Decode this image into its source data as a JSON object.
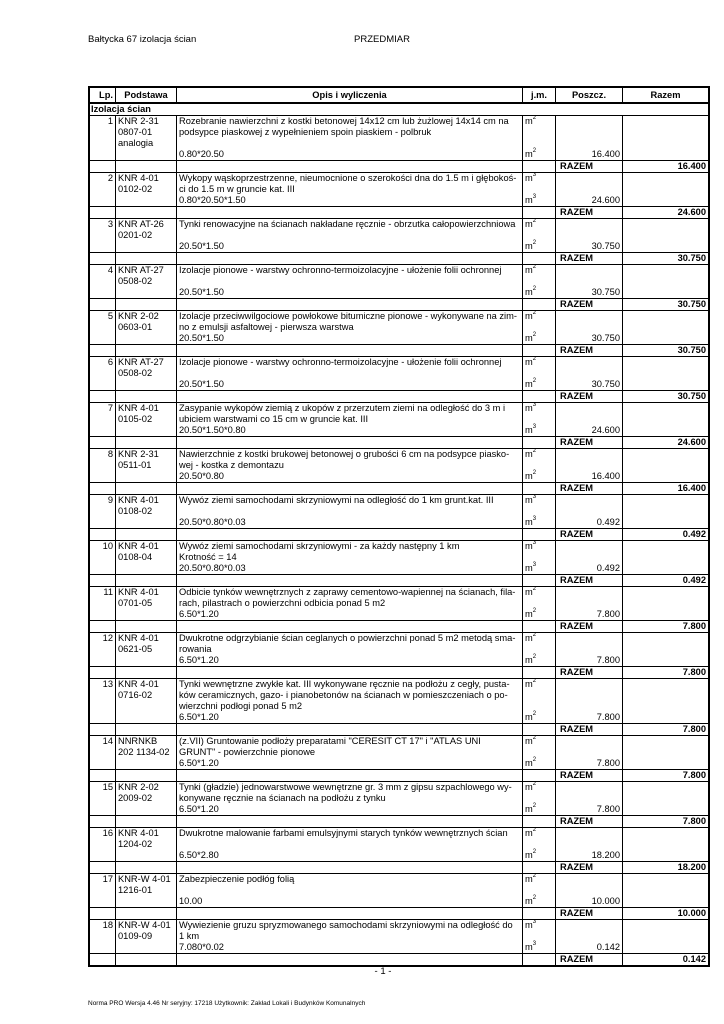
{
  "header": {
    "left": "Bałtycka 67 izolacja ścian",
    "center": "PRZEDMIAR"
  },
  "table": {
    "columns": [
      "Lp.",
      "Podstawa",
      "Opis i wyliczenia",
      "j.m.",
      "Poszcz.",
      "Razem"
    ],
    "section": "Izolacja ścian",
    "razem_label": "RAZEM",
    "items": [
      {
        "lp": "1",
        "podstawa": [
          "KNR 2-31",
          "0807-01",
          "analogia"
        ],
        "opis": [
          "Rozebranie nawierzchni z kostki betonowej 14x12 cm lub żużlowej 14x14 cm na",
          "podsypce piaskowej z wypełnieniem spoin piaskiem - polbruk"
        ],
        "formula": "0.80*20.50",
        "jm": "m2",
        "poszcz": "16.400",
        "razem": "16.400"
      },
      {
        "lp": "2",
        "podstawa": [
          "KNR 4-01",
          "0102-02"
        ],
        "opis": [
          "Wykopy wąskoprzestrzenne, nieumocnione o szerokości dna do 1.5 m i głębokoś-",
          "ci do 1.5 m w gruncie kat. III"
        ],
        "formula": "0.80*20.50*1.50",
        "jm": "m3",
        "poszcz": "24.600",
        "razem": "24.600"
      },
      {
        "lp": "3",
        "podstawa": [
          "KNR AT-26",
          "0201-02"
        ],
        "opis": [
          "Tynki renowacyjne na ścianach nakładane ręcznie - obrzutka całopowierzchniowa"
        ],
        "formula": "20.50*1.50",
        "jm": "m2",
        "poszcz": "30.750",
        "razem": "30.750"
      },
      {
        "lp": "4",
        "podstawa": [
          "KNR AT-27",
          "0508-02"
        ],
        "opis": [
          "Izolacje pionowe - warstwy ochronno-termoizolacyjne - ułożenie folii ochronnej"
        ],
        "formula": "20.50*1.50",
        "jm": "m2",
        "poszcz": "30.750",
        "razem": "30.750"
      },
      {
        "lp": "5",
        "podstawa": [
          "KNR 2-02",
          "0603-01"
        ],
        "opis": [
          "Izolacje przeciwwilgociowe powłokowe bitumiczne pionowe - wykonywane na zim-",
          "no z emulsji asfaltowej - pierwsza warstwa"
        ],
        "formula": "20.50*1.50",
        "jm": "m2",
        "poszcz": "30.750",
        "razem": "30.750"
      },
      {
        "lp": "6",
        "podstawa": [
          "KNR AT-27",
          "0508-02"
        ],
        "opis": [
          "Izolacje pionowe - warstwy ochronno-termoizolacyjne - ułożenie folii ochronnej"
        ],
        "formula": "20.50*1.50",
        "jm": "m2",
        "poszcz": "30.750",
        "razem": "30.750"
      },
      {
        "lp": "7",
        "podstawa": [
          "KNR 4-01",
          "0105-02"
        ],
        "opis": [
          "Zasypanie wykopów ziemią z ukopów z przerzutem ziemi na odległość do 3 m i",
          "ubiciem warstwami co 15 cm w gruncie kat. III"
        ],
        "formula": "20.50*1.50*0.80",
        "jm": "m3",
        "poszcz": "24.600",
        "razem": "24.600"
      },
      {
        "lp": "8",
        "podstawa": [
          "KNR 2-31",
          "0511-01"
        ],
        "opis": [
          "Nawierzchnie z kostki brukowej betonowej o grubości 6 cm na podsypce piasko-",
          "wej - kostka z demontazu"
        ],
        "formula": "20.50*0.80",
        "jm": "m2",
        "poszcz": "16.400",
        "razem": "16.400"
      },
      {
        "lp": "9",
        "podstawa": [
          "KNR 4-01",
          "0108-02"
        ],
        "opis": [
          "Wywóz ziemi samochodami skrzyniowymi na odległość do 1 km grunt.kat. III"
        ],
        "formula": "20.50*0.80*0.03",
        "jm": "m3",
        "poszcz": "0.492",
        "razem": "0.492"
      },
      {
        "lp": "10",
        "podstawa": [
          "KNR 4-01",
          "0108-04"
        ],
        "opis": [
          "Wywóz ziemi samochodami skrzyniowymi - za każdy następny 1 km",
          "Krotność = 14"
        ],
        "formula": "20.50*0.80*0.03",
        "jm": "m3",
        "poszcz": "0.492",
        "razem": "0.492"
      },
      {
        "lp": "11",
        "podstawa": [
          "KNR 4-01",
          "0701-05"
        ],
        "opis": [
          "Odbicie tynków wewnętrznych z zaprawy cementowo-wapiennej na ścianach, fila-",
          "rach, pilastrach o powierzchni odbicia ponad 5 m2"
        ],
        "formula": "6.50*1.20",
        "jm": "m2",
        "poszcz": "7.800",
        "razem": "7.800"
      },
      {
        "lp": "12",
        "podstawa": [
          "KNR 4-01",
          "0621-05"
        ],
        "opis": [
          "Dwukrotne odgrzybianie ścian ceglanych o powierzchni ponad 5 m2 metodą sma-",
          "rowania"
        ],
        "formula": "6.50*1.20",
        "jm": "m2",
        "poszcz": "7.800",
        "razem": "7.800"
      },
      {
        "lp": "13",
        "podstawa": [
          "KNR 4-01",
          "0716-02"
        ],
        "opis": [
          "Tynki wewnętrzne zwykłe kat. III wykonywane ręcznie na podłożu z cegły, pusta-",
          "ków ceramicznych, gazo- i pianobetonów na ścianach w pomieszczeniach o po-",
          "wierzchni podłogi ponad 5 m2"
        ],
        "formula": "6.50*1.20",
        "jm": "m2",
        "poszcz": "7.800",
        "razem": "7.800"
      },
      {
        "lp": "14",
        "podstawa": [
          "NNRNKB",
          "202 1134-02"
        ],
        "opis": [
          "(z.VII) Gruntowanie podłoży preparatami \"CERESIT CT 17\" i \"ATLAS UNI",
          "GRUNT\" - powierzchnie pionowe"
        ],
        "formula": "6.50*1.20",
        "jm": "m2",
        "poszcz": "7.800",
        "razem": "7.800"
      },
      {
        "lp": "15",
        "podstawa": [
          "KNR 2-02",
          "2009-02"
        ],
        "opis": [
          "Tynki (gładzie) jednowarstwowe wewnętrzne gr. 3 mm z gipsu szpachlowego wy-",
          "konywane ręcznie na ścianach na podłożu z tynku"
        ],
        "formula": "6.50*1.20",
        "jm": "m2",
        "poszcz": "7.800",
        "razem": "7.800"
      },
      {
        "lp": "16",
        "podstawa": [
          "KNR 4-01",
          "1204-02"
        ],
        "opis": [
          "Dwukrotne malowanie farbami emulsyjnymi starych tynków wewnętrznych ścian"
        ],
        "formula": "6.50*2.80",
        "jm": "m2",
        "poszcz": "18.200",
        "razem": "18.200"
      },
      {
        "lp": "17",
        "podstawa": [
          "KNR-W 4-01",
          "1216-01"
        ],
        "opis": [
          "Zabezpieczenie podłóg folią"
        ],
        "formula": "10.00",
        "jm": "m2",
        "poszcz": "10.000",
        "razem": "10.000"
      },
      {
        "lp": "18",
        "podstawa": [
          "KNR-W 4-01",
          "0109-09"
        ],
        "opis": [
          "Wywiezienie gruzu spryzmowanego samochodami skrzyniowymi na odległość do",
          "1 km"
        ],
        "formula": "7.080*0.02",
        "jm": "m3",
        "poszcz": "0.142",
        "razem": "0.142"
      }
    ]
  },
  "page_number": "- 1 -",
  "footer": "Norma PRO Wersja 4.46 Nr seryjny: 17218 Użytkownik: Zakład Lokali i Budynków Komunalnych"
}
